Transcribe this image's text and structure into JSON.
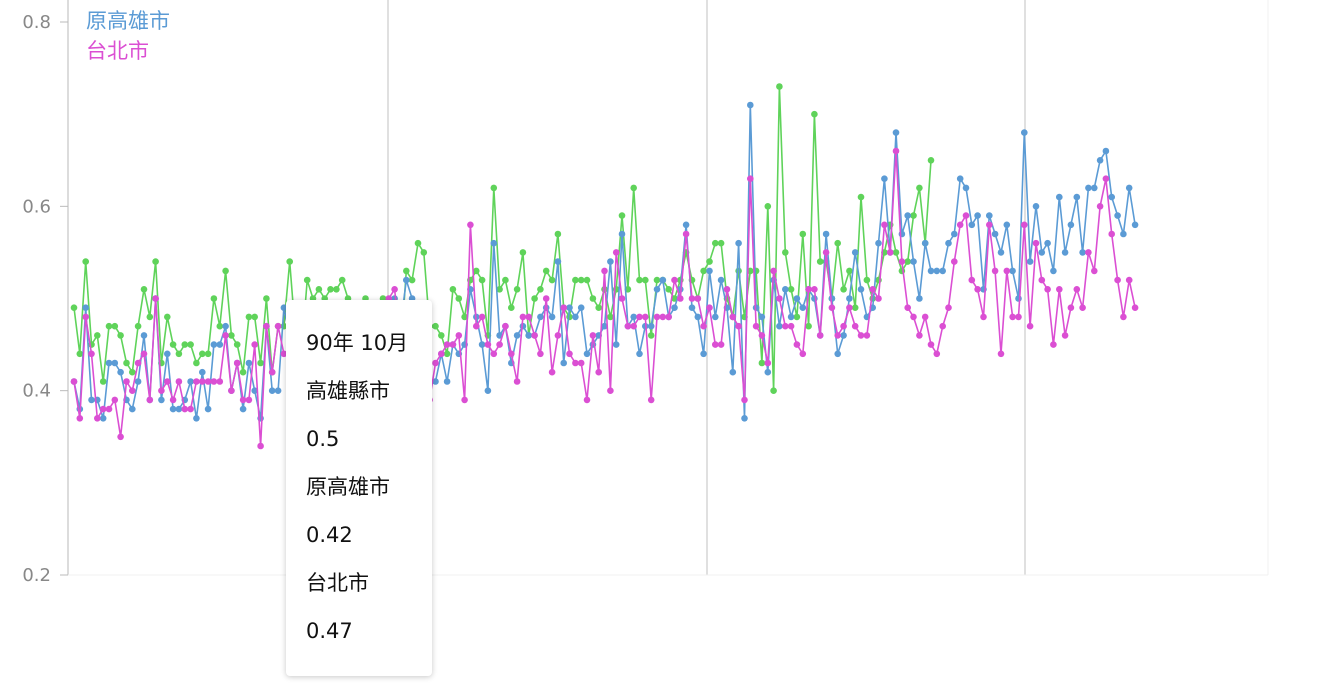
{
  "chart_data": {
    "type": "line",
    "title": "",
    "xlabel": "",
    "ylabel": "",
    "ylim": [
      0.2,
      0.8
    ],
    "yticks": [
      "0.2",
      "0.4",
      "0.6",
      "0.8"
    ],
    "grid": "vertical",
    "legend_position": "top-left",
    "series": [
      {
        "name": "高雄縣市",
        "color": "#5fd35a",
        "values": [
          0.49,
          0.44,
          0.54,
          0.45,
          0.46,
          0.41,
          0.47,
          0.47,
          0.46,
          0.43,
          0.42,
          0.47,
          0.51,
          0.48,
          0.54,
          0.43,
          0.48,
          0.45,
          0.44,
          0.45,
          0.45,
          0.43,
          0.44,
          0.44,
          0.5,
          0.47,
          0.53,
          0.46,
          0.45,
          0.42,
          0.48,
          0.48,
          0.43,
          0.5,
          0.42,
          0.47,
          0.47,
          0.54,
          0.46,
          0.44,
          0.52,
          0.5,
          0.51,
          0.5,
          0.51,
          0.51,
          0.52,
          0.5,
          0.49,
          0.45,
          0.5,
          0.44,
          0.48,
          0.5,
          0.46,
          0.48,
          0.44,
          0.53,
          0.52,
          0.56,
          0.55,
          0.47,
          0.47,
          0.46,
          0.44,
          0.51,
          0.5,
          0.48,
          0.52,
          0.53,
          0.52,
          0.46,
          0.62,
          0.51,
          0.52,
          0.49,
          0.51,
          0.55,
          0.46,
          0.5,
          0.51,
          0.53,
          0.52,
          0.57,
          0.49,
          0.48,
          0.52,
          0.52,
          0.52,
          0.5,
          0.49,
          0.51,
          0.48,
          0.51,
          0.59,
          0.51,
          0.62,
          0.52,
          0.52,
          0.46,
          0.52,
          0.52,
          0.51,
          0.5,
          0.52,
          0.55,
          0.52,
          0.5,
          0.53,
          0.54,
          0.56,
          0.56,
          0.5,
          0.48,
          0.53,
          0.48,
          0.53,
          0.53,
          0.43,
          0.6,
          0.4,
          0.73,
          0.55,
          0.51,
          0.48,
          0.57,
          0.47,
          0.7,
          0.54,
          0.54,
          0.5,
          0.56,
          0.51,
          0.53,
          0.49,
          0.61,
          0.52,
          0.5,
          0.52,
          0.55,
          0.58,
          0.55,
          0.53,
          0.54,
          0.59,
          0.62,
          0.56,
          0.65
        ],
        "points_rendered": 148
      },
      {
        "name": "原高雄市",
        "color": "#5b9bd5",
        "values": [
          0.41,
          0.38,
          0.49,
          0.39,
          0.39,
          0.37,
          0.43,
          0.43,
          0.42,
          0.39,
          0.38,
          0.41,
          0.46,
          0.39,
          0.5,
          0.39,
          0.44,
          0.38,
          0.38,
          0.39,
          0.41,
          0.37,
          0.42,
          0.38,
          0.45,
          0.45,
          0.47,
          0.4,
          0.43,
          0.38,
          0.43,
          0.4,
          0.37,
          0.47,
          0.4,
          0.4,
          0.49,
          0.46,
          0.44,
          0.43,
          0.4,
          0.43,
          0.45,
          0.43,
          0.44,
          0.42,
          0.42,
          0.43,
          0.44,
          0.4,
          0.43,
          0.4,
          0.45,
          0.46,
          0.4,
          0.5,
          0.47,
          0.52,
          0.5,
          0.41,
          0.45,
          0.41,
          0.41,
          0.44,
          0.41,
          0.45,
          0.44,
          0.45,
          0.51,
          0.48,
          0.45,
          0.4,
          0.56,
          0.46,
          0.47,
          0.43,
          0.46,
          0.47,
          0.46,
          0.46,
          0.48,
          0.49,
          0.48,
          0.54,
          0.43,
          0.49,
          0.48,
          0.49,
          0.44,
          0.45,
          0.46,
          0.47,
          0.54,
          0.45,
          0.57,
          0.47,
          0.48,
          0.44,
          0.47,
          0.47,
          0.51,
          0.52,
          0.48,
          0.49,
          0.51,
          0.58,
          0.49,
          0.48,
          0.44,
          0.53,
          0.48,
          0.52,
          0.49,
          0.42,
          0.56,
          0.37,
          0.71,
          0.49,
          0.48,
          0.42,
          0.52,
          0.47,
          0.51,
          0.48,
          0.5,
          0.49,
          0.51,
          0.5,
          0.46,
          0.57,
          0.5,
          0.44,
          0.46,
          0.5,
          0.55,
          0.51,
          0.48,
          0.49,
          0.56,
          0.63,
          0.55,
          0.68,
          0.57,
          0.59,
          0.54,
          0.5,
          0.56,
          0.53,
          0.53,
          0.53,
          0.56,
          0.57,
          0.63,
          0.62,
          0.58,
          0.59,
          0.51,
          0.59,
          0.57,
          0.55,
          0.58,
          0.53,
          0.5,
          0.68,
          0.54,
          0.6,
          0.55,
          0.56,
          0.53,
          0.61,
          0.55,
          0.58,
          0.61,
          0.55,
          0.62,
          0.62,
          0.65,
          0.66,
          0.61,
          0.59,
          0.57,
          0.62,
          0.58
        ]
      },
      {
        "name": "台北市",
        "color": "#db4fd3",
        "values": [
          0.41,
          0.37,
          0.48,
          0.44,
          0.37,
          0.38,
          0.38,
          0.39,
          0.35,
          0.41,
          0.4,
          0.43,
          0.44,
          0.39,
          0.5,
          0.4,
          0.41,
          0.39,
          0.41,
          0.38,
          0.38,
          0.41,
          0.41,
          0.41,
          0.41,
          0.41,
          0.46,
          0.4,
          0.43,
          0.39,
          0.39,
          0.45,
          0.34,
          0.47,
          0.42,
          0.47,
          0.44,
          0.44,
          0.43,
          0.41,
          0.41,
          0.42,
          0.41,
          0.42,
          0.41,
          0.42,
          0.4,
          0.43,
          0.41,
          0.4,
          0.39,
          0.38,
          0.46,
          0.44,
          0.5,
          0.51,
          0.45,
          0.42,
          0.42,
          0.4,
          0.44,
          0.39,
          0.43,
          0.44,
          0.45,
          0.45,
          0.46,
          0.39,
          0.58,
          0.47,
          0.48,
          0.45,
          0.44,
          0.45,
          0.47,
          0.44,
          0.41,
          0.48,
          0.48,
          0.46,
          0.44,
          0.5,
          0.42,
          0.46,
          0.49,
          0.44,
          0.43,
          0.43,
          0.39,
          0.46,
          0.42,
          0.53,
          0.4,
          0.55,
          0.5,
          0.47,
          0.47,
          0.48,
          0.48,
          0.39,
          0.48,
          0.48,
          0.48,
          0.52,
          0.5,
          0.57,
          0.5,
          0.5,
          0.47,
          0.49,
          0.45,
          0.45,
          0.51,
          0.48,
          0.47,
          0.39,
          0.63,
          0.47,
          0.46,
          0.43,
          0.53,
          0.5,
          0.47,
          0.47,
          0.45,
          0.44,
          0.51,
          0.51,
          0.46,
          0.55,
          0.49,
          0.46,
          0.47,
          0.49,
          0.47,
          0.46,
          0.46,
          0.51,
          0.5,
          0.58,
          0.55,
          0.66,
          0.54,
          0.49,
          0.48,
          0.46,
          0.48,
          0.45,
          0.44,
          0.47,
          0.49,
          0.54,
          0.58,
          0.59,
          0.52,
          0.51,
          0.48,
          0.58,
          0.53,
          0.44,
          0.53,
          0.48,
          0.48,
          0.58,
          0.47,
          0.56,
          0.52,
          0.51,
          0.45,
          0.51,
          0.46,
          0.49,
          0.51,
          0.49,
          0.55,
          0.53,
          0.6,
          0.63,
          0.57,
          0.52,
          0.48,
          0.52,
          0.49
        ]
      }
    ],
    "tooltip": {
      "label": "90年 10月",
      "entries": [
        {
          "name": "高雄縣市",
          "value": "0.5"
        },
        {
          "name": "原高雄市",
          "value": "0.42"
        },
        {
          "name": "台北市",
          "value": "0.47"
        }
      ]
    }
  }
}
